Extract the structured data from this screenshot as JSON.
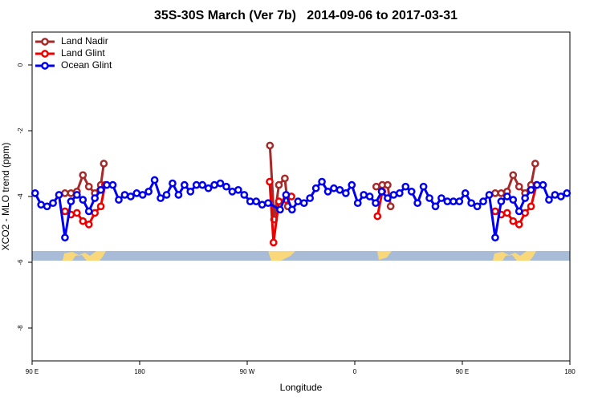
{
  "chart_data": {
    "type": "line",
    "title": "35S-30S March (Ver 7b)   2014-09-06 to 2017-03-31",
    "x_label": "Longitude",
    "y_label": "XCO2 - MLO trend (ppm)",
    "xlim": [
      90,
      540
    ],
    "ylim": [
      -9,
      1
    ],
    "xticks": [
      {
        "value": 90,
        "label": "90 E"
      },
      180,
      {
        "value": 270,
        "label": "90 W"
      },
      {
        "value": 360,
        "label": "0"
      },
      {
        "value": 450,
        "label": "90 E"
      },
      {
        "value": 540,
        "label": "180"
      }
    ],
    "yticks": [
      0,
      -2,
      -4,
      -6,
      -8
    ],
    "legend": "top-left",
    "series": [
      {
        "name": "Land Nadir",
        "color": "#a52a2a",
        "x": [
          117.5,
          122.5,
          127.5,
          132.5,
          137.5,
          142.5,
          147.5,
          150,
          null,
          289,
          292.5,
          296.5,
          301.5,
          304,
          null,
          378,
          383,
          387.5,
          390,
          null,
          477.5,
          482.5,
          487.5,
          492.5,
          497.5,
          502.5,
          507.5,
          511
        ],
        "values": [
          -3.9,
          -3.9,
          -3.85,
          -3.35,
          -3.7,
          -3.9,
          -3.65,
          -3.0,
          null,
          -2.45,
          -4.7,
          -3.65,
          -3.45,
          -4.3,
          null,
          -3.7,
          -3.65,
          -3.65,
          -4.3,
          null,
          -3.9,
          -3.9,
          -3.85,
          -3.35,
          -3.7,
          -3.9,
          -3.65,
          -3.0
        ]
      },
      {
        "name": "Land Glint",
        "color": "#ee0000",
        "x": [
          117.5,
          122.5,
          127.5,
          132.5,
          137.5,
          142.5,
          147.5,
          151,
          null,
          288.8,
          292,
          296.5,
          302.5,
          307,
          null,
          379,
          383,
          null,
          477.5,
          482.5,
          487.5,
          492.5,
          497.5,
          502.5,
          507.5,
          512
        ],
        "values": [
          -4.45,
          -4.55,
          -4.5,
          -4.75,
          -4.85,
          -4.5,
          -4.3,
          -3.65,
          null,
          -3.55,
          -5.4,
          -4.15,
          -4.1,
          -4.0,
          null,
          -4.6,
          -3.85,
          null,
          -4.45,
          -4.55,
          -4.5,
          -4.75,
          -4.85,
          -4.5,
          -4.3,
          -3.65
        ]
      },
      {
        "name": "Ocean Glint",
        "color": "#0000ee",
        "x": [
          92.5,
          97.5,
          102.5,
          107.5,
          112.5,
          117.5,
          122.5,
          127.5,
          132.5,
          137.5,
          142.5,
          147.5,
          152.5,
          157.5,
          162.5,
          167.5,
          172.5,
          177.5,
          182.5,
          187.5,
          192.5,
          197.5,
          202.5,
          207.5,
          212.5,
          217.5,
          222.5,
          227.5,
          232.5,
          237.5,
          242.5,
          247.5,
          252.5,
          257.5,
          262.5,
          267.5,
          272.5,
          277.5,
          282.5,
          287.5,
          297.5,
          302.5,
          307.5,
          312.5,
          317.5,
          322.5,
          327.5,
          332.5,
          337.5,
          342.5,
          347.5,
          352.5,
          357.5,
          362.5,
          367.5,
          372.5,
          377.5,
          382.5,
          387.5,
          392.5,
          397.5,
          402.5,
          407.5,
          412.5,
          417.5,
          422.5,
          427.5,
          432.5,
          437.5,
          442.5,
          447.5,
          452.5,
          457.5,
          462.5,
          467.5,
          472.5,
          477.5,
          482.5,
          487.5,
          492.5,
          497.5,
          502.5,
          507.5,
          512.5,
          517.5,
          522.5,
          527.5,
          532.5,
          537.5
        ],
        "values": [
          -3.9,
          -4.25,
          -4.3,
          -4.2,
          -3.95,
          -5.25,
          -4.15,
          -3.95,
          -4.1,
          -4.45,
          -4.05,
          -3.8,
          -3.65,
          -3.65,
          -4.1,
          -3.95,
          -4.0,
          -3.9,
          -3.95,
          -3.85,
          -3.5,
          -4.05,
          -3.95,
          -3.6,
          -3.95,
          -3.65,
          -3.85,
          -3.65,
          -3.65,
          -3.75,
          -3.65,
          -3.6,
          -3.7,
          -3.85,
          -3.8,
          -3.95,
          -4.15,
          -4.15,
          -4.25,
          -4.2,
          -4.4,
          -3.95,
          -4.4,
          -4.15,
          -4.2,
          -4.05,
          -3.75,
          -3.55,
          -3.85,
          -3.75,
          -3.8,
          -3.9,
          -3.65,
          -4.2,
          -3.95,
          -4.0,
          -4.2,
          -3.85,
          -4.05,
          -3.95,
          -3.9,
          -3.7,
          -3.85,
          -4.2,
          -3.7,
          -4.05,
          -4.3,
          -4.05,
          -4.15,
          -4.15,
          -4.15,
          -3.9,
          -4.2,
          -4.3,
          -4.15,
          -3.95,
          -5.25,
          -4.15,
          -4.0,
          -4.1,
          -4.45,
          -4.05,
          -3.8,
          -3.65,
          -3.65,
          -4.1,
          -3.95,
          -4.0,
          -3.9
        ]
      }
    ]
  }
}
